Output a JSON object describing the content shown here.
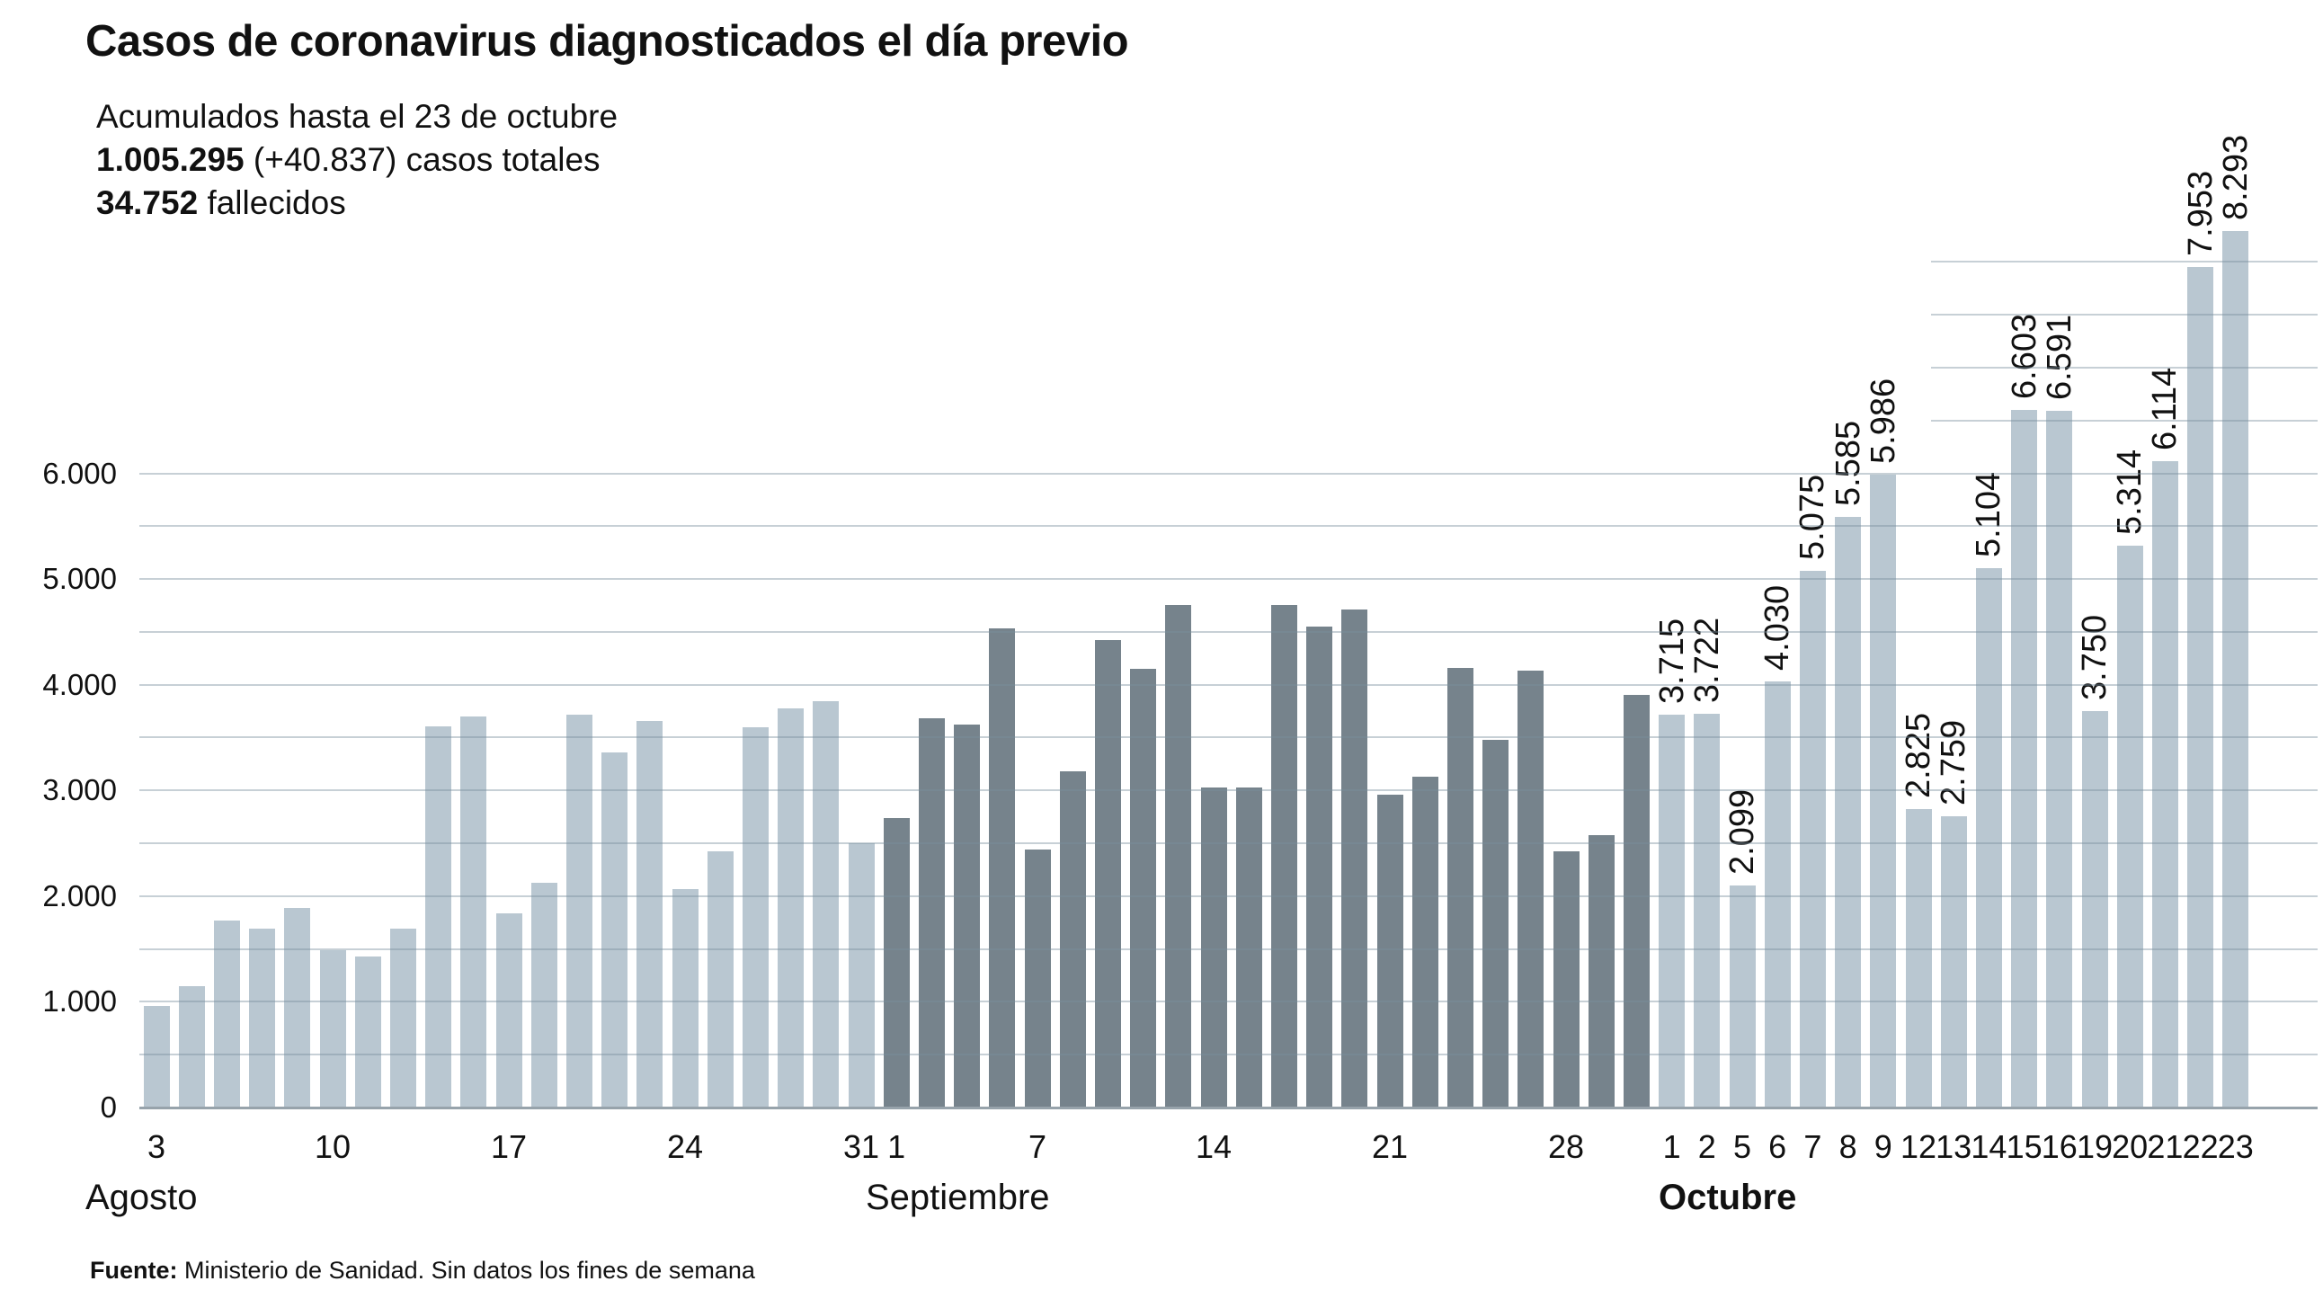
{
  "title": "Casos de coronavirus diagnosticados el día previo",
  "summary": {
    "accumulated": "Acumulados hasta el 23 de octubre",
    "total_bold": "1.005.295",
    "total_rest": " (+40.837) casos totales",
    "deaths_bold": "34.752",
    "deaths_rest": " fallecidos"
  },
  "source": {
    "bold": "Fuente:",
    "rest": " Ministerio de Sanidad. Sin datos los fines de semana"
  },
  "colors": {
    "bar_light": "#b9c7d1",
    "bar_dark": "#76838c",
    "gridline": "#c9d4db",
    "baseline": "#97a3ab",
    "text": "#111111",
    "background": "#ffffff"
  },
  "chart_data": {
    "type": "bar",
    "title": "Casos de coronavirus diagnosticados el día previo",
    "xlabel": "",
    "ylabel": "",
    "ylim": [
      0,
      8400
    ],
    "grid": "on",
    "legend": "none",
    "yticks": [
      {
        "value": 0,
        "label": "0"
      },
      {
        "value": 1000,
        "label": "1.000"
      },
      {
        "value": 2000,
        "label": "2.000"
      },
      {
        "value": 3000,
        "label": "3.000"
      },
      {
        "value": 4000,
        "label": "4.000"
      },
      {
        "value": 5000,
        "label": "5.000"
      },
      {
        "value": 6000,
        "label": "6.000"
      }
    ],
    "gridline_step": 500,
    "full_gridlines_max": 6000,
    "partial_gridlines": [
      6500,
      7000,
      7500,
      8000
    ],
    "months": [
      {
        "name": "Agosto",
        "bold": false,
        "bar_color": "#b9c7d1",
        "tick_days": [
          3,
          10,
          17,
          24,
          31
        ],
        "bars": [
          {
            "day": 3,
            "value": 960
          },
          {
            "day": 4,
            "value": 1150
          },
          {
            "day": 5,
            "value": 1770
          },
          {
            "day": 6,
            "value": 1690
          },
          {
            "day": 7,
            "value": 1890
          },
          {
            "day": 10,
            "value": 1490
          },
          {
            "day": 11,
            "value": 1425
          },
          {
            "day": 12,
            "value": 1690
          },
          {
            "day": 13,
            "value": 3610
          },
          {
            "day": 14,
            "value": 3700
          },
          {
            "day": 17,
            "value": 1835
          },
          {
            "day": 18,
            "value": 2130
          },
          {
            "day": 19,
            "value": 3720
          },
          {
            "day": 20,
            "value": 3360
          },
          {
            "day": 21,
            "value": 3660
          },
          {
            "day": 24,
            "value": 2070
          },
          {
            "day": 25,
            "value": 2420
          },
          {
            "day": 26,
            "value": 3600
          },
          {
            "day": 27,
            "value": 3780
          },
          {
            "day": 28,
            "value": 3840
          },
          {
            "day": 31,
            "value": 2500
          }
        ]
      },
      {
        "name": "Septiembre",
        "bold": false,
        "bar_color": "#76838c",
        "tick_days": [
          1,
          7,
          14,
          21,
          28
        ],
        "bars": [
          {
            "day": 1,
            "value": 2740
          },
          {
            "day": 2,
            "value": 3680
          },
          {
            "day": 3,
            "value": 3620
          },
          {
            "day": 4,
            "value": 4530
          },
          {
            "day": 7,
            "value": 2445
          },
          {
            "day": 8,
            "value": 3185
          },
          {
            "day": 9,
            "value": 4420
          },
          {
            "day": 10,
            "value": 4150
          },
          {
            "day": 11,
            "value": 4750
          },
          {
            "day": 14,
            "value": 3025
          },
          {
            "day": 15,
            "value": 3025
          },
          {
            "day": 16,
            "value": 4755
          },
          {
            "day": 17,
            "value": 4550
          },
          {
            "day": 18,
            "value": 4715
          },
          {
            "day": 21,
            "value": 2960
          },
          {
            "day": 22,
            "value": 3130
          },
          {
            "day": 23,
            "value": 4155
          },
          {
            "day": 24,
            "value": 3480
          },
          {
            "day": 25,
            "value": 4130
          },
          {
            "day": 28,
            "value": 2420
          },
          {
            "day": 29,
            "value": 2580
          },
          {
            "day": 30,
            "value": 3905
          }
        ]
      },
      {
        "name": "Octubre",
        "bold": true,
        "bar_color": "#b9c7d1",
        "tick_days": [
          1,
          2,
          5,
          6,
          7,
          8,
          9,
          12,
          13,
          14,
          15,
          16,
          19,
          20,
          21,
          22,
          23
        ],
        "bars": [
          {
            "day": 1,
            "value": 3715,
            "label": "3.715"
          },
          {
            "day": 2,
            "value": 3722,
            "label": "3.722"
          },
          {
            "day": 5,
            "value": 2099,
            "label": "2.099"
          },
          {
            "day": 6,
            "value": 4030,
            "label": "4.030"
          },
          {
            "day": 7,
            "value": 5075,
            "label": "5.075"
          },
          {
            "day": 8,
            "value": 5585,
            "label": "5.585"
          },
          {
            "day": 9,
            "value": 5986,
            "label": "5.986"
          },
          {
            "day": 12,
            "value": 2825,
            "label": "2.825"
          },
          {
            "day": 13,
            "value": 2759,
            "label": "2.759"
          },
          {
            "day": 14,
            "value": 5104,
            "label": "5.104"
          },
          {
            "day": 15,
            "value": 6603,
            "label": "6.603"
          },
          {
            "day": 16,
            "value": 6591,
            "label": "6.591"
          },
          {
            "day": 19,
            "value": 3750,
            "label": "3.750"
          },
          {
            "day": 20,
            "value": 5314,
            "label": "5.314"
          },
          {
            "day": 21,
            "value": 6114,
            "label": "6.114"
          },
          {
            "day": 22,
            "value": 7953,
            "label": "7.953"
          },
          {
            "day": 23,
            "value": 8293,
            "label": "8.293"
          }
        ]
      }
    ]
  }
}
